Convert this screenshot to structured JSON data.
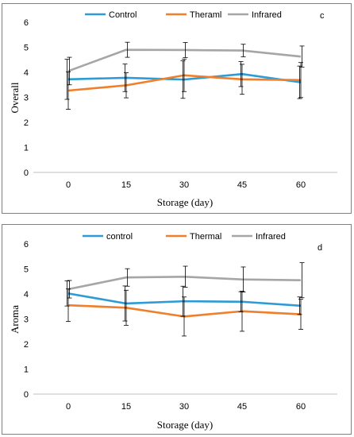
{
  "chart_data": [
    {
      "type": "line",
      "panel_label": "c",
      "xlabel": "Storage (day)",
      "ylabel": "Overall",
      "x": [
        0,
        15,
        30,
        45,
        60
      ],
      "ylim": [
        0,
        6
      ],
      "yticks": [
        0,
        1,
        2,
        3,
        4,
        5,
        6
      ],
      "grid": false,
      "legend": "top",
      "series": [
        {
          "name": "Control",
          "color": "#2e9bd6",
          "values": [
            3.72,
            3.78,
            3.71,
            3.93,
            3.6
          ],
          "errors": [
            0.8,
            0.55,
            0.75,
            0.5,
            0.65
          ]
        },
        {
          "name": "Theraml",
          "color": "#f07e2a",
          "values": [
            3.27,
            3.48,
            3.88,
            3.72,
            3.69
          ],
          "errors": [
            0.75,
            0.5,
            0.65,
            0.6,
            0.7
          ]
        },
        {
          "name": "Infrared",
          "color": "#a6a6a6",
          "values": [
            4.05,
            4.9,
            4.89,
            4.87,
            4.63
          ],
          "errors": [
            0.55,
            0.3,
            0.3,
            0.25,
            0.42
          ]
        }
      ]
    },
    {
      "type": "line",
      "panel_label": "d",
      "xlabel": "Storage (day)",
      "ylabel": "Aroma",
      "x": [
        0,
        15,
        30,
        45,
        60
      ],
      "ylim": [
        0,
        6
      ],
      "yticks": [
        0,
        1,
        2,
        3,
        4,
        5,
        6
      ],
      "grid": false,
      "legend": "top",
      "series": [
        {
          "name": "control",
          "color": "#2e9bd6",
          "values": [
            4.02,
            3.62,
            3.71,
            3.69,
            3.53
          ],
          "errors": [
            0.5,
            0.7,
            0.6,
            0.4,
            0.35
          ]
        },
        {
          "name": "Thermal",
          "color": "#f07e2a",
          "values": [
            3.55,
            3.45,
            3.1,
            3.31,
            3.19
          ],
          "errors": [
            0.65,
            0.7,
            0.78,
            0.8,
            0.6
          ]
        },
        {
          "name": "Infrared",
          "color": "#a6a6a6",
          "values": [
            4.19,
            4.66,
            4.69,
            4.58,
            4.55
          ],
          "errors": [
            0.35,
            0.35,
            0.42,
            0.5,
            0.7
          ]
        }
      ]
    }
  ]
}
